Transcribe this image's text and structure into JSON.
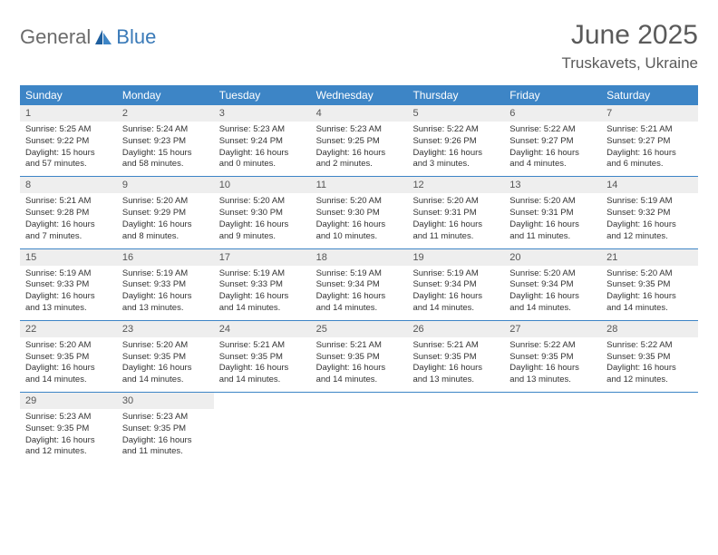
{
  "brand": {
    "text_general": "General",
    "text_blue": "Blue",
    "icon_color_dark": "#1f5f9e",
    "icon_color_light": "#3d85c6"
  },
  "header": {
    "title": "June 2025",
    "location": "Truskavets, Ukraine"
  },
  "colors": {
    "header_bar": "#3d85c6",
    "daynum_bg": "#eeeeee",
    "text_muted": "#555555",
    "rule": "#3d85c6"
  },
  "daysOfWeek": [
    "Sunday",
    "Monday",
    "Tuesday",
    "Wednesday",
    "Thursday",
    "Friday",
    "Saturday"
  ],
  "weeks": [
    [
      {
        "n": "1",
        "sr": "5:25 AM",
        "ss": "9:22 PM",
        "dl": "15 hours and 57 minutes."
      },
      {
        "n": "2",
        "sr": "5:24 AM",
        "ss": "9:23 PM",
        "dl": "15 hours and 58 minutes."
      },
      {
        "n": "3",
        "sr": "5:23 AM",
        "ss": "9:24 PM",
        "dl": "16 hours and 0 minutes."
      },
      {
        "n": "4",
        "sr": "5:23 AM",
        "ss": "9:25 PM",
        "dl": "16 hours and 2 minutes."
      },
      {
        "n": "5",
        "sr": "5:22 AM",
        "ss": "9:26 PM",
        "dl": "16 hours and 3 minutes."
      },
      {
        "n": "6",
        "sr": "5:22 AM",
        "ss": "9:27 PM",
        "dl": "16 hours and 4 minutes."
      },
      {
        "n": "7",
        "sr": "5:21 AM",
        "ss": "9:27 PM",
        "dl": "16 hours and 6 minutes."
      }
    ],
    [
      {
        "n": "8",
        "sr": "5:21 AM",
        "ss": "9:28 PM",
        "dl": "16 hours and 7 minutes."
      },
      {
        "n": "9",
        "sr": "5:20 AM",
        "ss": "9:29 PM",
        "dl": "16 hours and 8 minutes."
      },
      {
        "n": "10",
        "sr": "5:20 AM",
        "ss": "9:30 PM",
        "dl": "16 hours and 9 minutes."
      },
      {
        "n": "11",
        "sr": "5:20 AM",
        "ss": "9:30 PM",
        "dl": "16 hours and 10 minutes."
      },
      {
        "n": "12",
        "sr": "5:20 AM",
        "ss": "9:31 PM",
        "dl": "16 hours and 11 minutes."
      },
      {
        "n": "13",
        "sr": "5:20 AM",
        "ss": "9:31 PM",
        "dl": "16 hours and 11 minutes."
      },
      {
        "n": "14",
        "sr": "5:19 AM",
        "ss": "9:32 PM",
        "dl": "16 hours and 12 minutes."
      }
    ],
    [
      {
        "n": "15",
        "sr": "5:19 AM",
        "ss": "9:33 PM",
        "dl": "16 hours and 13 minutes."
      },
      {
        "n": "16",
        "sr": "5:19 AM",
        "ss": "9:33 PM",
        "dl": "16 hours and 13 minutes."
      },
      {
        "n": "17",
        "sr": "5:19 AM",
        "ss": "9:33 PM",
        "dl": "16 hours and 14 minutes."
      },
      {
        "n": "18",
        "sr": "5:19 AM",
        "ss": "9:34 PM",
        "dl": "16 hours and 14 minutes."
      },
      {
        "n": "19",
        "sr": "5:19 AM",
        "ss": "9:34 PM",
        "dl": "16 hours and 14 minutes."
      },
      {
        "n": "20",
        "sr": "5:20 AM",
        "ss": "9:34 PM",
        "dl": "16 hours and 14 minutes."
      },
      {
        "n": "21",
        "sr": "5:20 AM",
        "ss": "9:35 PM",
        "dl": "16 hours and 14 minutes."
      }
    ],
    [
      {
        "n": "22",
        "sr": "5:20 AM",
        "ss": "9:35 PM",
        "dl": "16 hours and 14 minutes."
      },
      {
        "n": "23",
        "sr": "5:20 AM",
        "ss": "9:35 PM",
        "dl": "16 hours and 14 minutes."
      },
      {
        "n": "24",
        "sr": "5:21 AM",
        "ss": "9:35 PM",
        "dl": "16 hours and 14 minutes."
      },
      {
        "n": "25",
        "sr": "5:21 AM",
        "ss": "9:35 PM",
        "dl": "16 hours and 14 minutes."
      },
      {
        "n": "26",
        "sr": "5:21 AM",
        "ss": "9:35 PM",
        "dl": "16 hours and 13 minutes."
      },
      {
        "n": "27",
        "sr": "5:22 AM",
        "ss": "9:35 PM",
        "dl": "16 hours and 13 minutes."
      },
      {
        "n": "28",
        "sr": "5:22 AM",
        "ss": "9:35 PM",
        "dl": "16 hours and 12 minutes."
      }
    ],
    [
      {
        "n": "29",
        "sr": "5:23 AM",
        "ss": "9:35 PM",
        "dl": "16 hours and 12 minutes."
      },
      {
        "n": "30",
        "sr": "5:23 AM",
        "ss": "9:35 PM",
        "dl": "16 hours and 11 minutes."
      },
      null,
      null,
      null,
      null,
      null
    ]
  ],
  "labels": {
    "sunrise": "Sunrise: ",
    "sunset": "Sunset: ",
    "daylight": "Daylight: "
  }
}
